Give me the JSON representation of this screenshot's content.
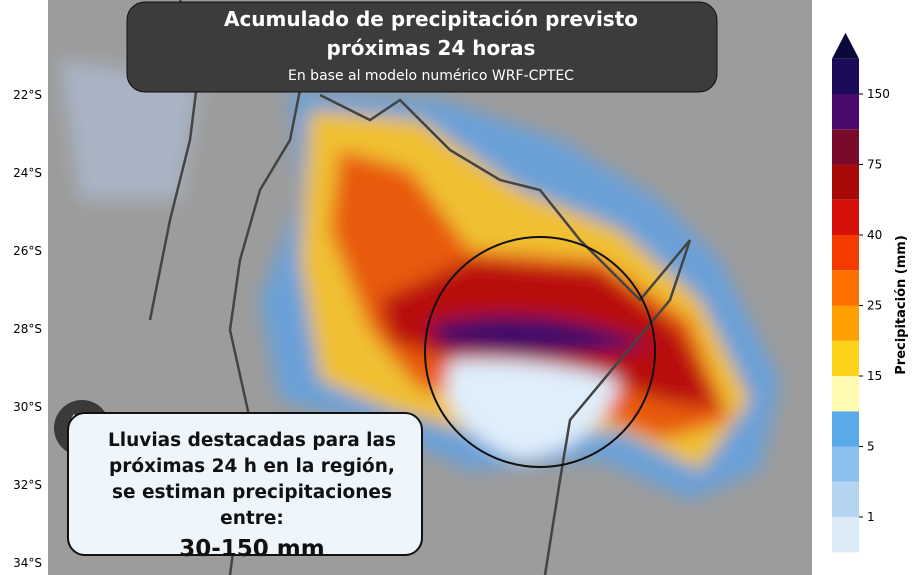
{
  "header": {
    "title_line1": "Acumulado de precipitación previsto",
    "title_line2": "próximas 24 horas",
    "subtitle": "En base al modelo numérico WRF-CPTEC"
  },
  "map": {
    "lat_labels": [
      "22°S",
      "24°S",
      "26°S",
      "28°S",
      "30°S",
      "32°S",
      "34°S"
    ]
  },
  "colorbar": {
    "label": "Precipitación (mm)",
    "ticks": [
      1,
      5,
      15,
      25,
      40,
      75,
      150
    ],
    "colors": [
      "#ffffff",
      "#dceaf8",
      "#b5d4f2",
      "#8cc0ef",
      "#5aaaea",
      "#fffbb0",
      "#ffd21a",
      "#ffa000",
      "#ff6f00",
      "#f53c00",
      "#d8100a",
      "#a80a0a",
      "#7a0a2a",
      "#4a0a6e",
      "#1c0a5a",
      "#0a0a3a"
    ]
  },
  "callout": {
    "text": "Lluvias destacadas para las próximas 24 h en la región, se estiman precipitaciones entre:",
    "range": "30-150 mm"
  }
}
